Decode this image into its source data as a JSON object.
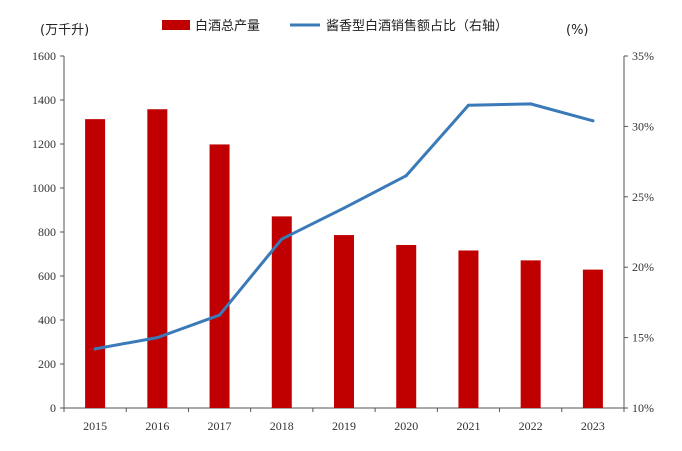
{
  "chart_data": {
    "type": "bar+line",
    "categories": [
      "2015",
      "2016",
      "2017",
      "2018",
      "2019",
      "2020",
      "2021",
      "2022",
      "2023"
    ],
    "series": [
      {
        "name": "白酒总产量",
        "type": "bar",
        "axis": "left",
        "color": "#C00000",
        "values": [
          1313,
          1358,
          1198,
          871,
          786,
          741,
          716,
          671,
          629
        ]
      },
      {
        "name": "酱香型白酒销售额占比（右轴）",
        "type": "line",
        "axis": "right",
        "color": "#3B7AB8",
        "values": [
          14.2,
          15.0,
          16.6,
          22.0,
          24.2,
          26.5,
          31.5,
          31.6,
          30.4
        ]
      }
    ],
    "y_left": {
      "unit_label": "(万千升)",
      "min": 0,
      "max": 1600,
      "step": 200,
      "ticks": [
        "0",
        "200",
        "400",
        "600",
        "800",
        "1000",
        "1200",
        "1400",
        "1600"
      ]
    },
    "y_right": {
      "unit_label": "(%)",
      "min": 10,
      "max": 35,
      "step": 5,
      "ticks": [
        "10%",
        "15%",
        "20%",
        "25%",
        "30%",
        "35%"
      ]
    },
    "grid": false,
    "legend_position": "top"
  }
}
